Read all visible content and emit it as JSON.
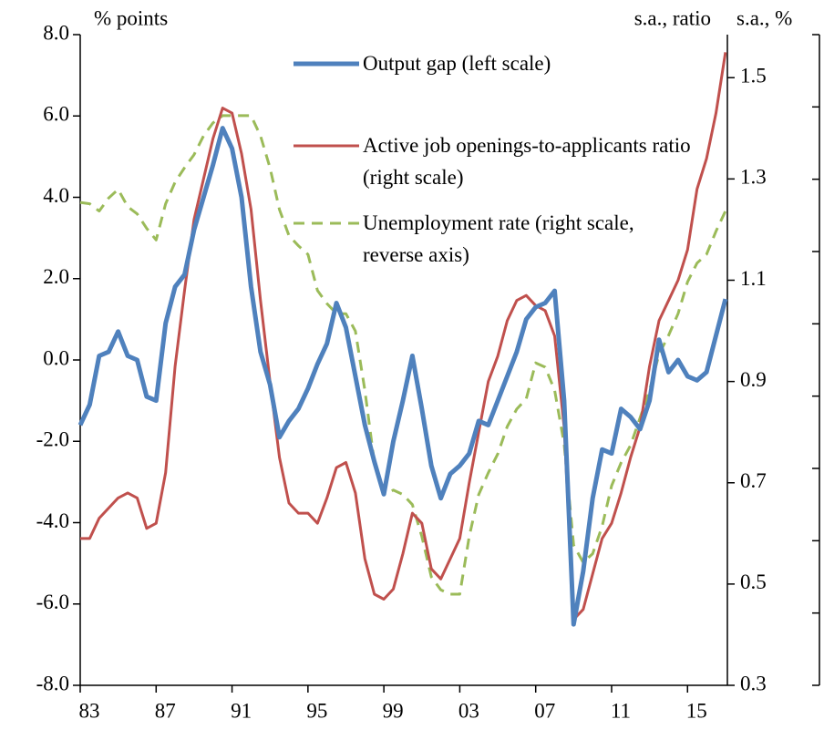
{
  "chart_data": {
    "type": "line",
    "y_label": "% points",
    "y2_label": "s.a., ratio",
    "y3_label": "s.a., %",
    "x": [
      1983,
      1983.5,
      1984,
      1984.5,
      1985,
      1985.5,
      1986,
      1986.5,
      1987,
      1987.5,
      1988,
      1988.5,
      1989,
      1989.5,
      1990,
      1990.5,
      1991,
      1991.5,
      1992,
      1992.5,
      1993,
      1993.5,
      1994,
      1994.5,
      1995,
      1995.5,
      1996,
      1996.5,
      1997,
      1997.5,
      1998,
      1998.5,
      1999,
      1999.5,
      2000,
      2000.5,
      2001,
      2001.5,
      2002,
      2002.5,
      2003,
      2003.5,
      2004,
      2004.5,
      2005,
      2005.5,
      2006,
      2006.5,
      2007,
      2007.5,
      2008,
      2008.5,
      2009,
      2009.5,
      2010,
      2010.5,
      2011,
      2011.5,
      2012,
      2012.5,
      2013,
      2013.5,
      2014,
      2014.5,
      2015,
      2015.5,
      2016,
      2016.5,
      2017
    ],
    "xlim": [
      1983,
      2017.1
    ],
    "xticks": [
      {
        "value": 1983,
        "label": "83"
      },
      {
        "value": 1987,
        "label": "87"
      },
      {
        "value": 1991,
        "label": "91"
      },
      {
        "value": 1995,
        "label": "95"
      },
      {
        "value": 1999,
        "label": "99"
      },
      {
        "value": 2003,
        "label": "03"
      },
      {
        "value": 2007,
        "label": "07"
      },
      {
        "value": 2011,
        "label": "11"
      },
      {
        "value": 2015,
        "label": "15"
      }
    ],
    "ylim": [
      -8,
      8
    ],
    "yticks": [
      {
        "value": -8,
        "label": "-8.0"
      },
      {
        "value": -6,
        "label": "-6.0"
      },
      {
        "value": -4,
        "label": "-4.0"
      },
      {
        "value": -2,
        "label": "-2.0"
      },
      {
        "value": 0,
        "label": "0.0"
      },
      {
        "value": 2,
        "label": "2.0"
      },
      {
        "value": 4,
        "label": "4.0"
      },
      {
        "value": 6,
        "label": "6.0"
      },
      {
        "value": 8,
        "label": "8.0"
      }
    ],
    "y2lim": [
      0.3,
      1.585
    ],
    "y2ticks": [
      0.3,
      0.5,
      0.7,
      0.9,
      1.1,
      1.3,
      1.5
    ],
    "y3lim": [
      1.5,
      6.0
    ],
    "y3_reverse": true,
    "y3ticks": [
      1.5,
      2.0,
      2.5,
      3.0,
      3.5,
      4.0,
      4.5,
      5.0,
      5.5,
      6.0
    ],
    "series": [
      {
        "name": "Output gap (left scale)",
        "color": "#4f81bd",
        "axis": "y",
        "values": [
          -1.6,
          -1.1,
          0.1,
          0.2,
          0.7,
          0.1,
          0.0,
          -0.9,
          -1.0,
          0.9,
          1.8,
          2.1,
          3.2,
          4.0,
          4.8,
          5.7,
          5.2,
          4.0,
          1.8,
          0.2,
          -0.6,
          -1.9,
          -1.5,
          -1.2,
          -0.7,
          -0.1,
          0.4,
          1.4,
          0.8,
          -0.4,
          -1.6,
          -2.5,
          -3.3,
          -2.0,
          -1.0,
          0.1,
          -1.2,
          -2.6,
          -3.4,
          -2.8,
          -2.6,
          -2.3,
          -1.5,
          -1.6,
          -1.0,
          -0.4,
          0.2,
          1.0,
          1.3,
          1.4,
          1.7,
          -1.0,
          -6.5,
          -5.2,
          -3.4,
          -2.2,
          -2.3,
          -1.2,
          -1.4,
          -1.7,
          -1.0,
          0.5,
          -0.3,
          0.0,
          -0.4,
          -0.5,
          -0.3,
          0.6,
          1.5
        ]
      },
      {
        "name": "Active job openings-to-applicants ratio (right scale)",
        "color": "#c0504d",
        "axis": "y2",
        "values": [
          0.59,
          0.59,
          0.63,
          0.65,
          0.67,
          0.68,
          0.67,
          0.61,
          0.62,
          0.72,
          0.93,
          1.08,
          1.22,
          1.3,
          1.38,
          1.44,
          1.43,
          1.35,
          1.24,
          1.06,
          0.9,
          0.75,
          0.66,
          0.64,
          0.64,
          0.62,
          0.67,
          0.73,
          0.74,
          0.68,
          0.55,
          0.48,
          0.47,
          0.49,
          0.56,
          0.64,
          0.62,
          0.53,
          0.51,
          0.55,
          0.59,
          0.7,
          0.8,
          0.9,
          0.95,
          1.02,
          1.06,
          1.07,
          1.05,
          1.04,
          0.99,
          0.81,
          0.43,
          0.45,
          0.52,
          0.59,
          0.62,
          0.68,
          0.75,
          0.81,
          0.93,
          1.02,
          1.06,
          1.1,
          1.16,
          1.28,
          1.34,
          1.43,
          1.55
        ]
      },
      {
        "name": "Unemployment rate (right scale, reverse axis)",
        "color": "#9bbb59",
        "axis": "y3",
        "dashed": true,
        "values": [
          2.66,
          2.67,
          2.72,
          2.63,
          2.57,
          2.69,
          2.74,
          2.84,
          2.92,
          2.67,
          2.52,
          2.42,
          2.33,
          2.2,
          2.11,
          2.06,
          2.06,
          2.06,
          2.06,
          2.2,
          2.42,
          2.71,
          2.89,
          2.96,
          3.02,
          3.27,
          3.36,
          3.43,
          3.43,
          3.55,
          3.96,
          4.46,
          4.68,
          4.65,
          4.68,
          4.75,
          4.97,
          5.25,
          5.34,
          5.37,
          5.37,
          4.97,
          4.68,
          4.53,
          4.4,
          4.21,
          4.09,
          4.02,
          3.77,
          3.8,
          3.96,
          4.33,
          5.03,
          5.15,
          5.09,
          4.9,
          4.62,
          4.46,
          4.34,
          4.15,
          3.96,
          3.71,
          3.58,
          3.43,
          3.21,
          3.08,
          3.02,
          2.86,
          2.72
        ]
      }
    ]
  }
}
